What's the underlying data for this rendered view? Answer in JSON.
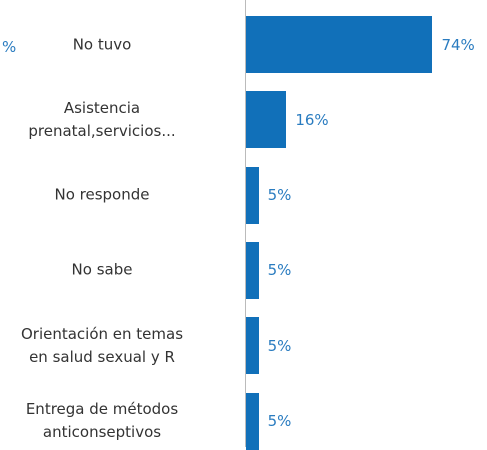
{
  "chart_data": {
    "type": "bar",
    "orientation": "horizontal",
    "y_label": "%",
    "categories": [
      "No tuvo",
      "Asistencia\nprenatal,servicios...",
      "No responde",
      "No sabe",
      "Orientación en temas\nen salud sexual y R",
      "Entrega de métodos\nanticonseptivos"
    ],
    "values": [
      74,
      16,
      5,
      5,
      5,
      5
    ],
    "value_labels": [
      "74%",
      "16%",
      "5%",
      "5%",
      "5%",
      "5%"
    ],
    "color": "#1170b9",
    "label_color": "#2a7cc0",
    "xlim": [
      0,
      75
    ]
  }
}
